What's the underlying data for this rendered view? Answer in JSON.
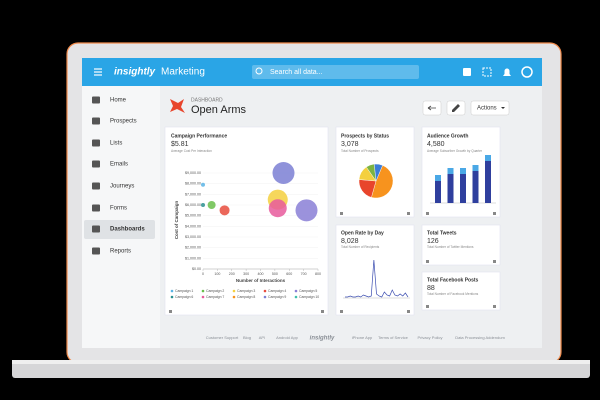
{
  "topbar": {
    "logo": "insightly",
    "app": "Marketing",
    "search": "Search all data..."
  },
  "sidebar": [
    "Home",
    "Prospects",
    "Lists",
    "Emails",
    "Journeys",
    "Forms",
    "Dashboards",
    "Reports"
  ],
  "header": {
    "breadcrumb": "DASHBOARD",
    "title": "Open Arms",
    "actions": "Actions"
  },
  "cards": {
    "campaign": {
      "title": "Campaign Performance",
      "value": "$5.81",
      "subtitle": "Average Cost Per Interaction",
      "chart": {
        "type": "bubble",
        "x_label": "Number of Interactions",
        "y_label": "Cost of Campaign",
        "xlim": [
          0,
          800
        ],
        "ylim": [
          0,
          9000
        ],
        "xticks": [
          0,
          100,
          200,
          300,
          400,
          500,
          600,
          700,
          800
        ],
        "yticks": [
          {
            "value": 0,
            "label": "$0.00"
          },
          {
            "value": 1000,
            "label": "$1,000.00"
          },
          {
            "value": 2000,
            "label": "$2,000.00"
          },
          {
            "value": 3000,
            "label": "$3,000.00"
          },
          {
            "value": 4000,
            "label": "$4,000.00"
          },
          {
            "value": 5000,
            "label": "$5,000.00"
          },
          {
            "value": 6000,
            "label": "$6,000.00"
          },
          {
            "value": 7000,
            "label": "$7,000.00"
          },
          {
            "value": 8000,
            "label": "$8,000.00"
          },
          {
            "value": 9000,
            "label": "$9,000.00"
          }
        ],
        "legend": [
          "Campaign 1",
          "Campaign 2",
          "Campaign 3",
          "Campaign 4",
          "Campaign 5",
          "Campaign 6",
          "Campaign 7",
          "Campaign 8",
          "Campaign 9",
          "Campaign 10"
        ],
        "legend_colors": [
          "#5ab4e5",
          "#6abf4b",
          "#f4d03f",
          "#e84c3d",
          "#8a7fd6",
          "#2a8f8f",
          "#e75b9c",
          "#f7931e",
          "#7b7fd4",
          "#3fbfad"
        ],
        "x": [
          0,
          0,
          60,
          150,
          520,
          520,
          560,
          720
        ],
        "y": [
          7900,
          6000,
          6000,
          5500,
          6500,
          5700,
          9000,
          5500
        ],
        "size": [
          2,
          2,
          4,
          5,
          10,
          9,
          11,
          11
        ],
        "colors": [
          "#5ab4e5",
          "#2a8f8f",
          "#6abf4b",
          "#e84c3d",
          "#f4d03f",
          "#e75b9c",
          "#7b7fd4",
          "#8a7fd6"
        ]
      }
    },
    "prospects": {
      "title": "Prospects by Status",
      "value": "3,078",
      "subtitle": "Total Number of Prospects",
      "chart": {
        "type": "pie",
        "values": [
          48,
          22,
          14,
          8,
          8
        ],
        "colors": [
          "#f7931e",
          "#e8452c",
          "#f4d03f",
          "#7cb342",
          "#3b7dd8"
        ]
      }
    },
    "audience": {
      "title": "Audience Growth",
      "value": "4,580",
      "subtitle": "Average Subscriber Growth by Quarter",
      "chart": {
        "type": "bar",
        "series": [
          {
            "color": "#2f3f9e",
            "values": [
              22,
              29,
              29,
              32,
              42
            ]
          },
          {
            "color": "#4aa8e6",
            "values": [
              6,
              6,
              6,
              6,
              6
            ]
          }
        ]
      }
    },
    "openrate": {
      "title": "Open Rate by Day",
      "value": "8,028",
      "subtitle": "Total Number of Recipients",
      "chart": {
        "type": "line",
        "color": "#3b4db0",
        "values": [
          1,
          1,
          2,
          1,
          1,
          2,
          1,
          3,
          2,
          1,
          2,
          38,
          4,
          2,
          1,
          6,
          3,
          2,
          8,
          3,
          2,
          4,
          2,
          5,
          1
        ]
      }
    },
    "tweets": {
      "title": "Total Tweets",
      "value": "126",
      "subtitle": "Total Number of Twitter Mentions"
    },
    "facebook": {
      "title": "Total Facebook Posts",
      "value": "88",
      "subtitle": "Total Number of Facebook Mentions"
    }
  },
  "footer": [
    "Customer Support",
    "Blog",
    "API",
    "Android App",
    "insightly",
    "iPhone App",
    "Terms of Service",
    "Privacy Policy",
    "Data Processing Addendum"
  ]
}
